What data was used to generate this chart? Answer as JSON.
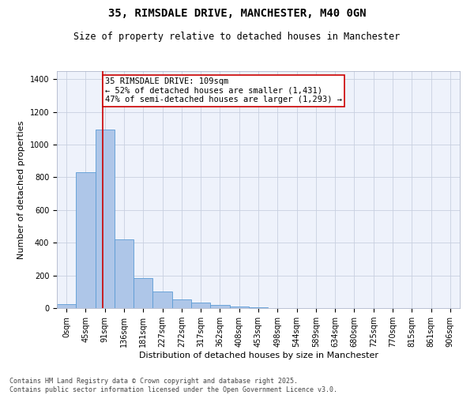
{
  "title_line1": "35, RIMSDALE DRIVE, MANCHESTER, M40 0GN",
  "title_line2": "Size of property relative to detached houses in Manchester",
  "xlabel": "Distribution of detached houses by size in Manchester",
  "ylabel": "Number of detached properties",
  "bar_color": "#aec6e8",
  "bar_edge_color": "#5b9bd5",
  "background_color": "#eef2fb",
  "grid_color": "#c8d0e0",
  "vline_color": "#cc0000",
  "annotation_box_color": "#cc0000",
  "categories": [
    "0sqm",
    "45sqm",
    "91sqm",
    "136sqm",
    "181sqm",
    "227sqm",
    "272sqm",
    "317sqm",
    "362sqm",
    "408sqm",
    "453sqm",
    "498sqm",
    "544sqm",
    "589sqm",
    "634sqm",
    "680sqm",
    "725sqm",
    "770sqm",
    "815sqm",
    "861sqm",
    "906sqm"
  ],
  "values": [
    25,
    830,
    1090,
    420,
    185,
    100,
    55,
    33,
    20,
    10,
    5,
    0,
    0,
    0,
    0,
    0,
    0,
    0,
    0,
    0,
    0
  ],
  "ylim": [
    0,
    1450
  ],
  "yticks": [
    0,
    200,
    400,
    600,
    800,
    1000,
    1200,
    1400
  ],
  "annot_line1": "35 RIMSDALE DRIVE: 109sqm",
  "annot_line2": "← 52% of detached houses are smaller (1,431)",
  "annot_line3": "47% of semi-detached houses are larger (1,293) →",
  "vline_x": 2.4,
  "footer_line1": "Contains HM Land Registry data © Crown copyright and database right 2025.",
  "footer_line2": "Contains public sector information licensed under the Open Government Licence v3.0.",
  "title_fontsize": 10,
  "subtitle_fontsize": 8.5,
  "axis_label_fontsize": 8,
  "tick_fontsize": 7,
  "annotation_fontsize": 7.5,
  "footer_fontsize": 6
}
